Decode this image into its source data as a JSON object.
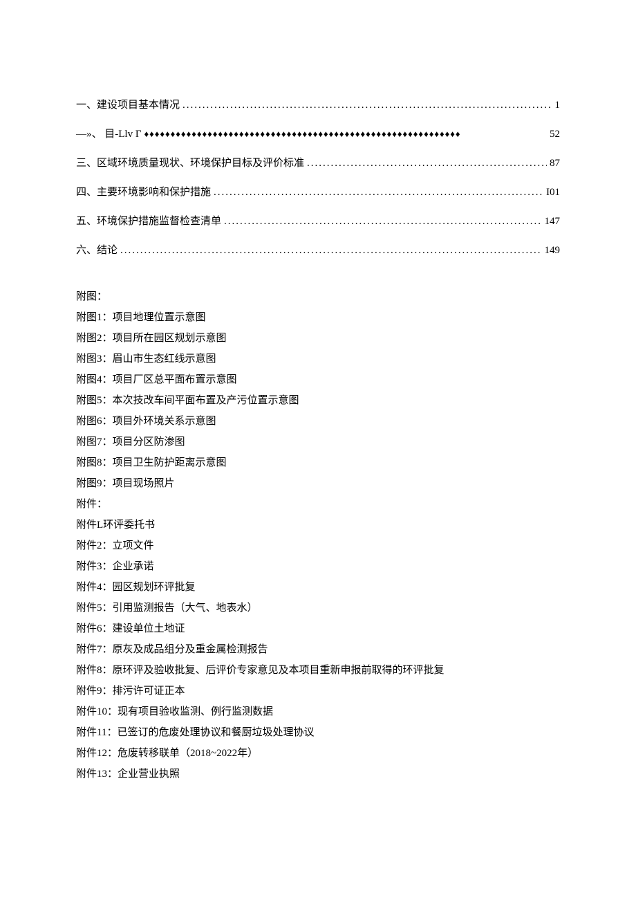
{
  "toc": [
    {
      "label": "一、建设项目基本情况",
      "page": "1",
      "leader": "dots"
    },
    {
      "label": "—»、 目-Llv Γ",
      "page": "52",
      "leader": "diamonds"
    },
    {
      "label": "三、区域环境质量现状、环境保护目标及评价标准",
      "page": "87",
      "leader": "dots"
    },
    {
      "label": "四、主要环境影响和保护措施",
      "page": "I01",
      "leader": "dots"
    },
    {
      "label": "五、环境保护措施监督检查清单",
      "page": "147",
      "leader": "dots"
    },
    {
      "label": "六、结论",
      "page": "149",
      "leader": "dots"
    }
  ],
  "figures_header": "附图：",
  "figures": [
    "附图1：项目地理位置示意图",
    "附图2：项目所在园区规划示意图",
    "附图3：眉山市生态红线示意图",
    "附图4：项目厂区总平面布置示意图",
    "附图5：本次技改车间平面布置及产污位置示意图",
    "附图6：项目外环境关系示意图",
    "附图7：项目分区防渗图",
    "附图8：项目卫生防护距离示意图",
    "附图9：项目现场照片"
  ],
  "attachments_header": "附件：",
  "attachments": [
    "附件L环评委托书",
    "附件2：立项文件",
    "附件3：企业承诺",
    "附件4：园区规划环评批复",
    "附件5：引用监测报告（大气、地表水）",
    "附件6：建设单位土地证",
    "附件7：原灰及成品组分及重金属检测报告",
    "附件8：原环评及验收批复、后评价专家意见及本项目重新申报前取得的环评批复",
    "附件9：排污许可证正本",
    "附件10：现有项目验收监测、例行监测数据",
    "附件11：已签订的危废处理协议和餐厨垃圾处理协议",
    "附件12：危废转移联单（2018~2022年）",
    "附件13：企业营业执照"
  ],
  "style": {
    "background_color": "#ffffff",
    "text_color": "#000000",
    "font_family": "SimSun",
    "toc_fontsize": 15,
    "body_fontsize": 15,
    "line_height": 2,
    "dot_leader": "........................................................................................................................",
    "diamond_leader": "♦♦♦♦♦♦♦♦♦♦♦♦♦♦♦♦♦♦♦♦♦♦♦♦♦♦♦♦♦♦♦♦♦♦♦♦♦♦♦♦♦♦♦♦♦♦♦♦♦♦♦♦♦♦♦♦♦♦♦♦"
  }
}
